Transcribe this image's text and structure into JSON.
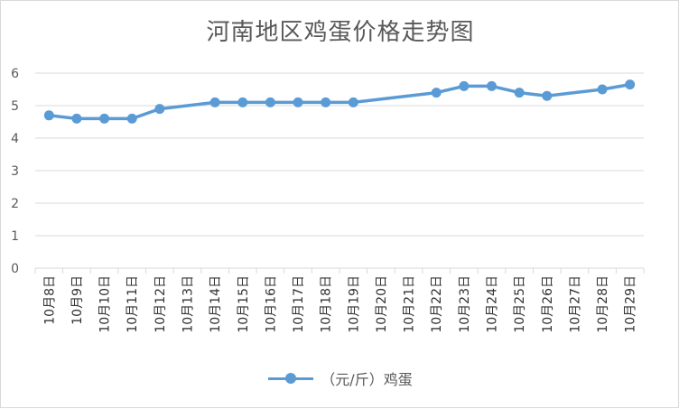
{
  "chart_data": {
    "type": "line",
    "title": "河南地区鸡蛋价格走势图",
    "xlabel": "",
    "ylabel": "",
    "ylim": [
      0,
      6
    ],
    "yticks": [
      0,
      1,
      2,
      3,
      4,
      5,
      6
    ],
    "grid": true,
    "legend": "bottom",
    "categories": [
      "10月8日",
      "10月9日",
      "10月10日",
      "10月11日",
      "10月12日",
      "10月13日",
      "10月14日",
      "10月15日",
      "10月16日",
      "10月17日",
      "10月18日",
      "10月19日",
      "10月20日",
      "10月21日",
      "10月22日",
      "10月23日",
      "10月24日",
      "10月25日",
      "10月26日",
      "10月27日",
      "10月28日",
      "10月29日"
    ],
    "series": [
      {
        "name": "（元/斤）鸡蛋",
        "color": "#5b9bd5",
        "values": [
          4.7,
          4.6,
          4.6,
          4.6,
          4.9,
          null,
          5.1,
          5.1,
          5.1,
          5.1,
          5.1,
          5.1,
          null,
          null,
          5.4,
          5.6,
          5.6,
          5.4,
          5.3,
          null,
          5.5,
          5.65
        ]
      }
    ]
  }
}
